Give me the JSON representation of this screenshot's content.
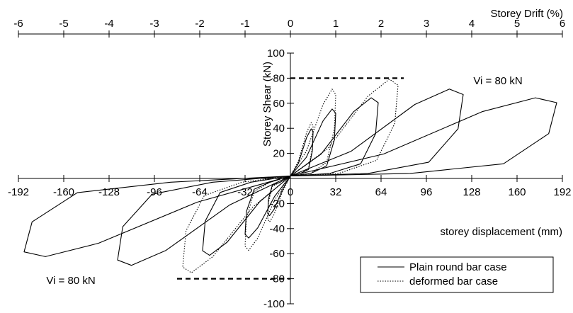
{
  "chart_data": {
    "type": "line",
    "xlabel": "storey displacement (mm)",
    "ylabel": "Storey Shear (kN)",
    "x2label": "Storey Drift (%)",
    "xlim": [
      -192,
      192
    ],
    "ylim": [
      -100,
      100
    ],
    "x_ticks": [
      "-192",
      "-160",
      "-128",
      "-96",
      "-64",
      "-32",
      "0",
      "32",
      "64",
      "96",
      "128",
      "160",
      "192"
    ],
    "x_tick_values": [
      -192,
      -160,
      -128,
      -96,
      -64,
      -32,
      0,
      32,
      64,
      96,
      128,
      160,
      192
    ],
    "x2_ticks": [
      "-6",
      "-5",
      "-4",
      "-3",
      "-2",
      "-1",
      "0",
      "1",
      "2",
      "3",
      "4",
      "5",
      "6"
    ],
    "x2_tick_values": [
      -6,
      -5,
      -4,
      -3,
      -2,
      -1,
      0,
      1,
      2,
      3,
      4,
      5,
      6
    ],
    "y_ticks": [
      "-100",
      "-80",
      "-60",
      "-40",
      "-20",
      "20",
      "40",
      "60",
      "80",
      "100"
    ],
    "y_tick_values": [
      -100,
      -80,
      -60,
      -40,
      -20,
      20,
      40,
      60,
      80,
      100
    ],
    "reference_lines": [
      {
        "label": "Vi = 80 kN",
        "y": 80,
        "x": [
          0,
          80
        ]
      },
      {
        "label": "Vi = 80 kN",
        "y": -80,
        "x": [
          -80,
          0
        ]
      }
    ],
    "legend": {
      "placement": "bottom-right"
    },
    "series": [
      {
        "name": "Plain round bar case",
        "style": "solid",
        "loops": [
          {
            "amp_pos": 16,
            "peak_pos": 40,
            "amp_neg": -16,
            "peak_neg": -30
          },
          {
            "amp_pos": 32,
            "peak_pos": 56,
            "amp_neg": -32,
            "peak_neg": -48
          },
          {
            "amp_pos": 62,
            "peak_pos": 65,
            "amp_neg": -62,
            "peak_neg": -62
          },
          {
            "amp_pos": 122,
            "peak_pos": 72,
            "amp_neg": -122,
            "peak_neg": -70
          },
          {
            "amp_pos": 188,
            "peak_pos": 65,
            "amp_neg": -188,
            "peak_neg": -63
          }
        ]
      },
      {
        "name": "deformed bar case",
        "style": "dotted",
        "loops": [
          {
            "amp_pos": 16,
            "peak_pos": 45,
            "amp_neg": -16,
            "peak_neg": -35
          },
          {
            "amp_pos": 32,
            "peak_pos": 72,
            "amp_neg": -32,
            "peak_neg": -58
          },
          {
            "amp_pos": 76,
            "peak_pos": 80,
            "amp_neg": -76,
            "peak_neg": -76
          }
        ]
      }
    ]
  }
}
